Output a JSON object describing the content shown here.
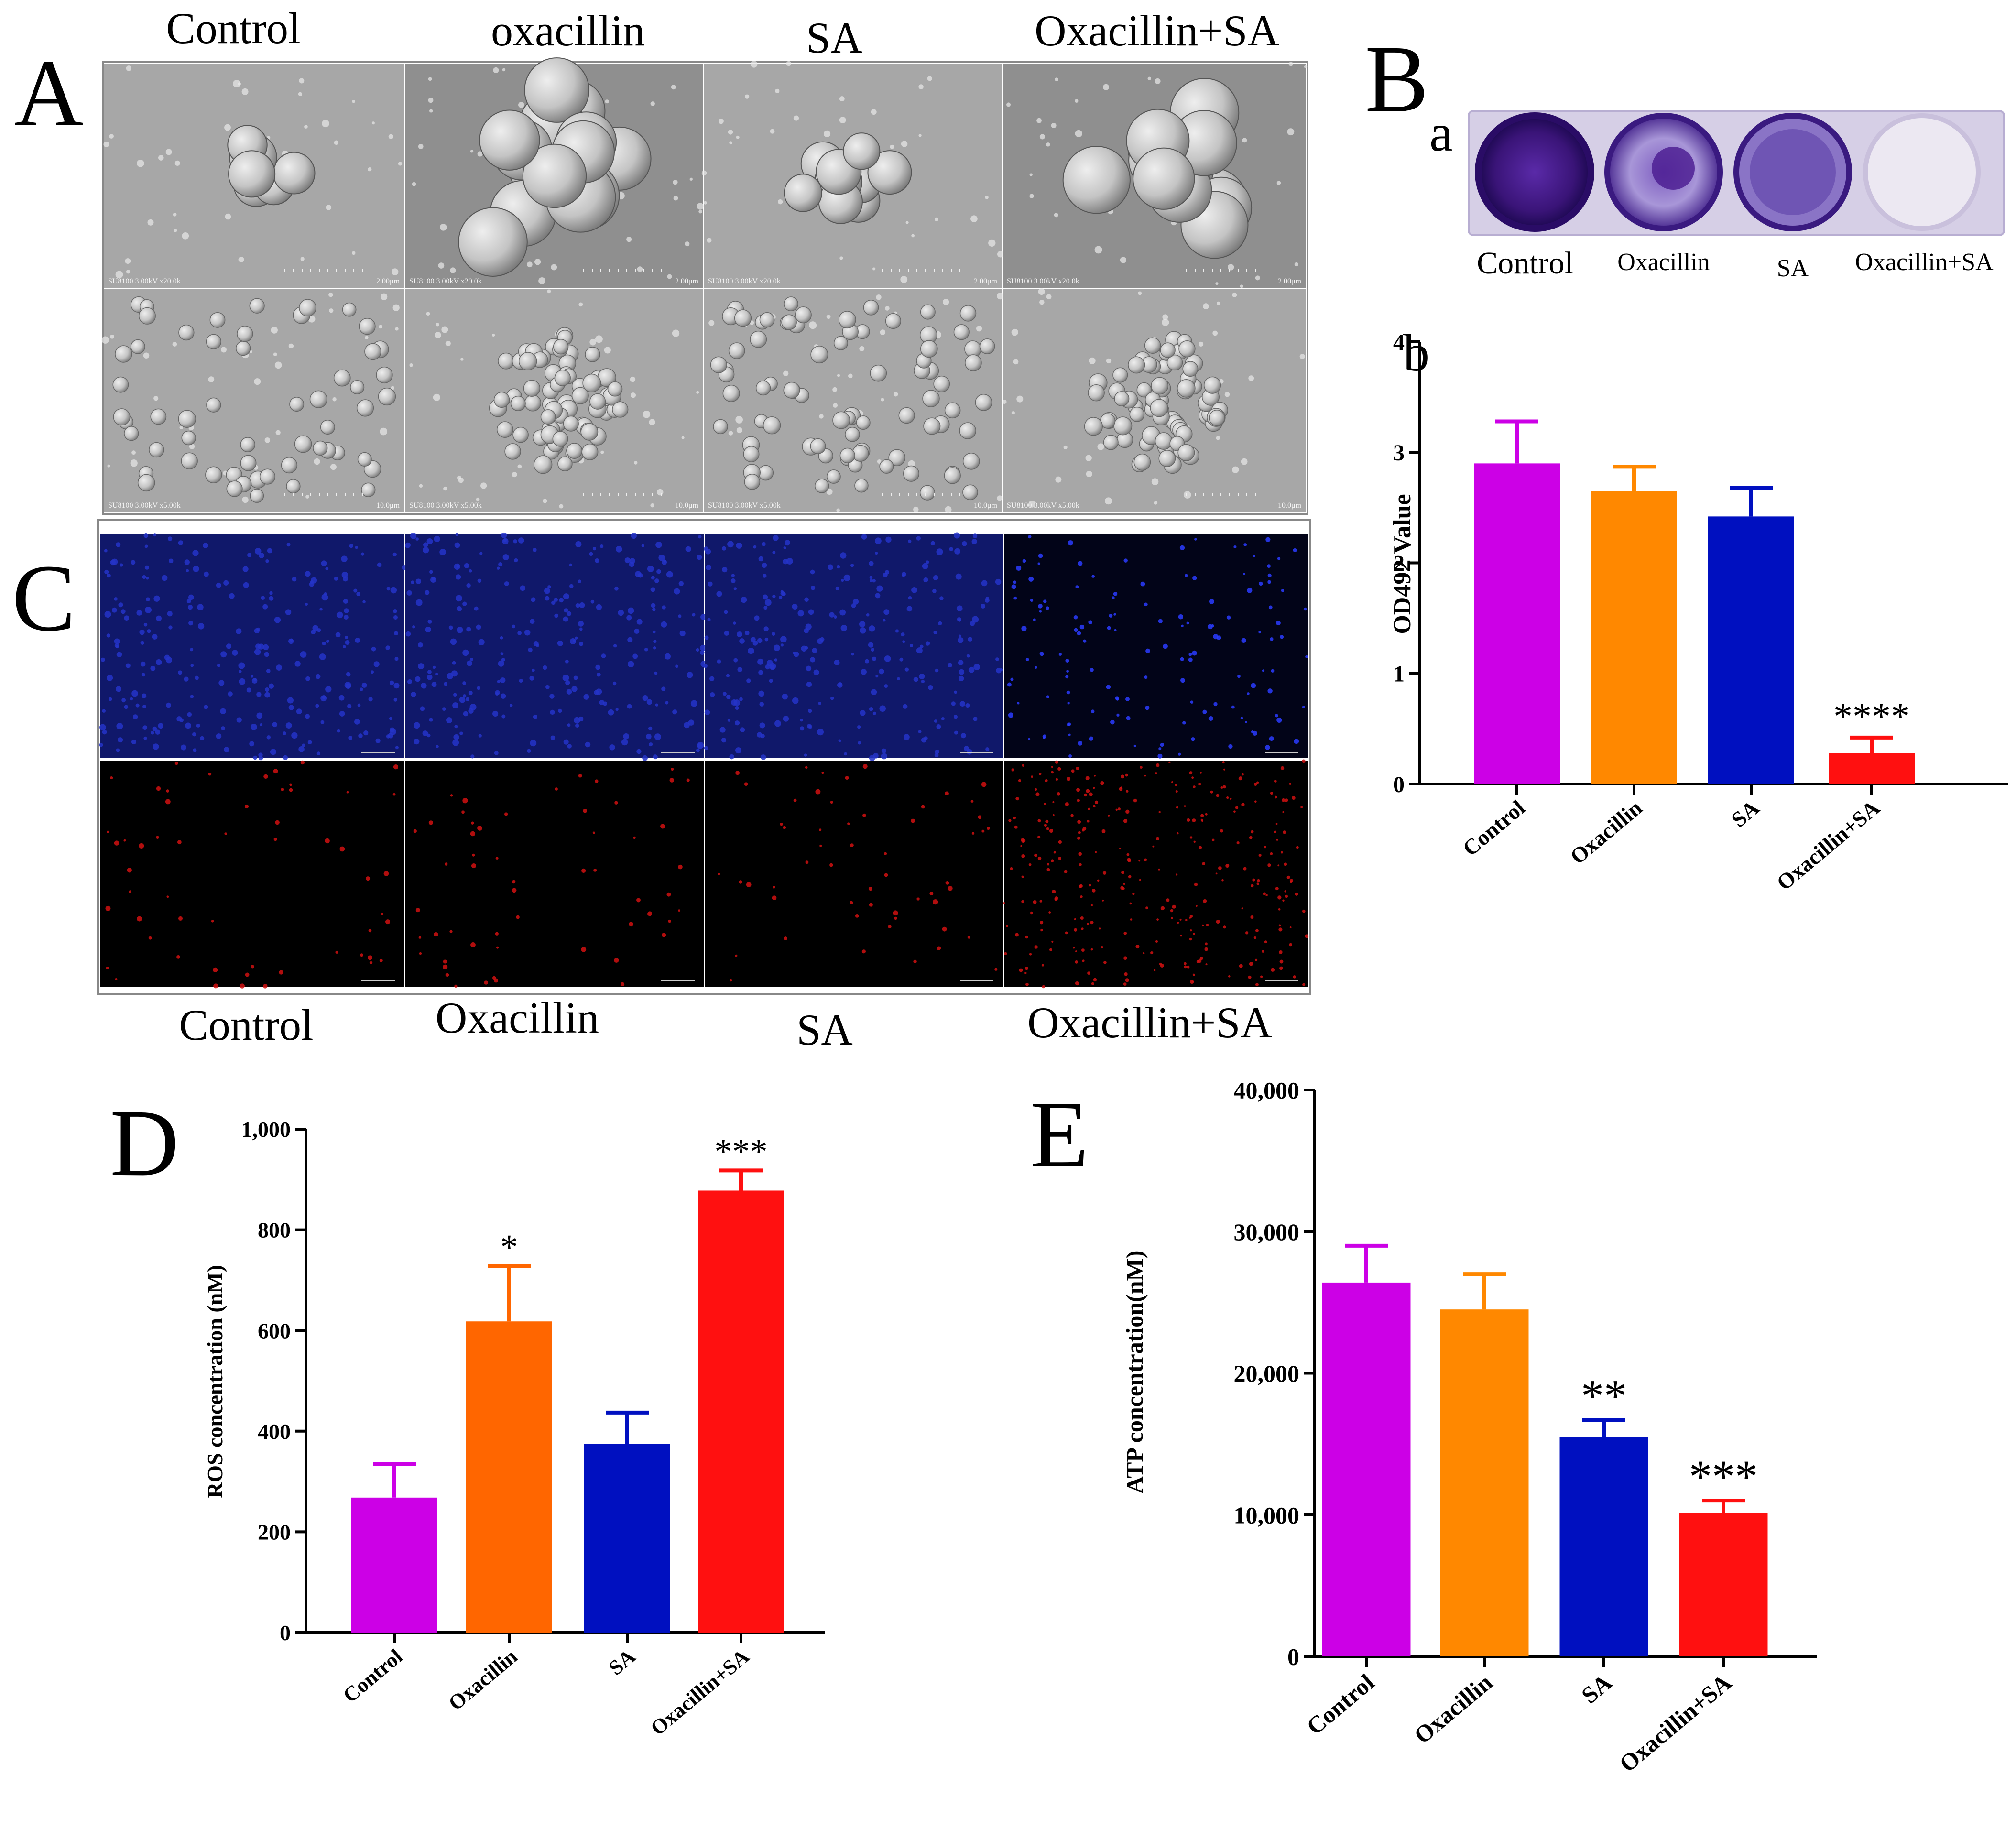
{
  "panels": {
    "A": {
      "letter": "A",
      "headers": [
        "Control",
        "oxacillin",
        "SA",
        "Oxacillin+SA"
      ],
      "sem_captions_top": [
        "SU8100 3.00kV x20.0k",
        "SU8100 3.00kV x20.0k",
        "SU8100 3.00kV x20.0k",
        "SU8100 3.00kV x20.0k"
      ],
      "scale_top": "2.00μm",
      "sem_captions_bottom": [
        "SU8100 3.00kV x5.00k",
        "SU8100 3.00kV x5.00k",
        "SU8100 3.00kV x5.00k",
        "SU8100 3.00kV x5.00k"
      ],
      "scale_bottom": "10.0μm"
    },
    "B": {
      "letter": "B",
      "sub_a": "a",
      "sub_b": "b",
      "plate_labels": [
        "Control",
        "Oxacillin",
        "SA",
        "Oxacillin+SA"
      ]
    },
    "C": {
      "letter": "C",
      "footers": [
        "Control",
        "Oxacillin",
        "SA",
        "Oxacillin+SA"
      ]
    },
    "D": {
      "letter": "D"
    },
    "E": {
      "letter": "E"
    }
  },
  "chart_data": [
    {
      "id": "Bb",
      "type": "bar",
      "categories": [
        "Control",
        "Oxacillin",
        "SA",
        "Oxacillin+SA"
      ],
      "values": [
        2.9,
        2.65,
        2.42,
        0.28
      ],
      "errors": [
        0.38,
        0.22,
        0.26,
        0.14
      ],
      "significance": [
        "",
        "",
        "",
        "****"
      ],
      "colors": [
        "#cc00e6",
        "#ff8800",
        "#0010c0",
        "#ff1010"
      ],
      "ylabel": "OD492 Value",
      "ylim": [
        0,
        4
      ],
      "yticks": [
        0,
        1,
        2,
        3,
        4
      ],
      "ytick_labels": [
        "0",
        "1",
        "2",
        "3",
        "4"
      ]
    },
    {
      "id": "D",
      "type": "bar",
      "categories": [
        "Control",
        "Oxacillin",
        "SA",
        "Oxacillin+SA"
      ],
      "values": [
        268,
        618,
        375,
        878
      ],
      "errors": [
        67,
        110,
        62,
        40
      ],
      "significance": [
        "",
        "*",
        "",
        "***"
      ],
      "colors": [
        "#cc00e6",
        "#ff6600",
        "#0010c0",
        "#ff1010"
      ],
      "ylabel": "ROS concentration (nM)",
      "ylim": [
        0,
        1000
      ],
      "yticks": [
        0,
        200,
        400,
        600,
        800,
        1000
      ],
      "ytick_labels": [
        "0",
        "200",
        "400",
        "600",
        "800",
        "1,000"
      ]
    },
    {
      "id": "E",
      "type": "bar",
      "categories": [
        "Control",
        "Oxacillin",
        "SA",
        "Oxacillin+SA"
      ],
      "values": [
        26400,
        24500,
        15500,
        10100
      ],
      "errors": [
        2600,
        2500,
        1200,
        900
      ],
      "significance": [
        "",
        "",
        "**",
        "***"
      ],
      "colors": [
        "#cc00e6",
        "#ff8800",
        "#0010c0",
        "#ff1010"
      ],
      "ylabel": "ATP concentration(nM)",
      "ylim": [
        0,
        40000
      ],
      "yticks": [
        0,
        10000,
        20000,
        30000,
        40000
      ],
      "ytick_labels": [
        "0",
        "10,000",
        "20,000",
        "30,000",
        "40,000"
      ]
    }
  ]
}
